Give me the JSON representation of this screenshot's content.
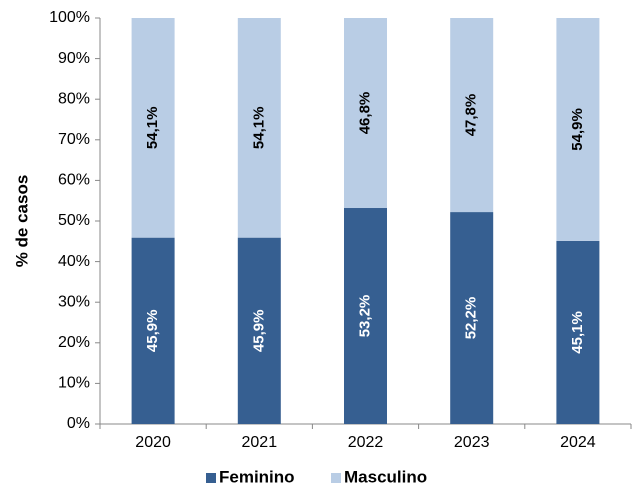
{
  "chart_data": {
    "type": "bar",
    "stacked": true,
    "categories": [
      "2020",
      "2021",
      "2022",
      "2023",
      "2024"
    ],
    "series": [
      {
        "name": "Feminino",
        "values": [
          45.9,
          45.9,
          53.2,
          52.2,
          45.1
        ],
        "labels": [
          "45,9%",
          "45,9%",
          "53,2%",
          "52,2%",
          "45,1%"
        ],
        "color": "#365F91",
        "label_color": "#FFFFFF"
      },
      {
        "name": "Masculino",
        "values": [
          54.1,
          54.1,
          46.8,
          47.8,
          54.9
        ],
        "labels": [
          "54,1%",
          "54,1%",
          "46,8%",
          "47,8%",
          "54,9%"
        ],
        "color": "#B9CDE5",
        "label_color": "#000000"
      }
    ],
    "ylabel": "% de casos",
    "xlabel": "",
    "ylim": [
      0,
      100
    ],
    "yticks": [
      "0%",
      "10%",
      "20%",
      "30%",
      "40%",
      "50%",
      "60%",
      "70%",
      "80%",
      "90%",
      "100%"
    ],
    "legend": "bottom",
    "grid": false
  }
}
